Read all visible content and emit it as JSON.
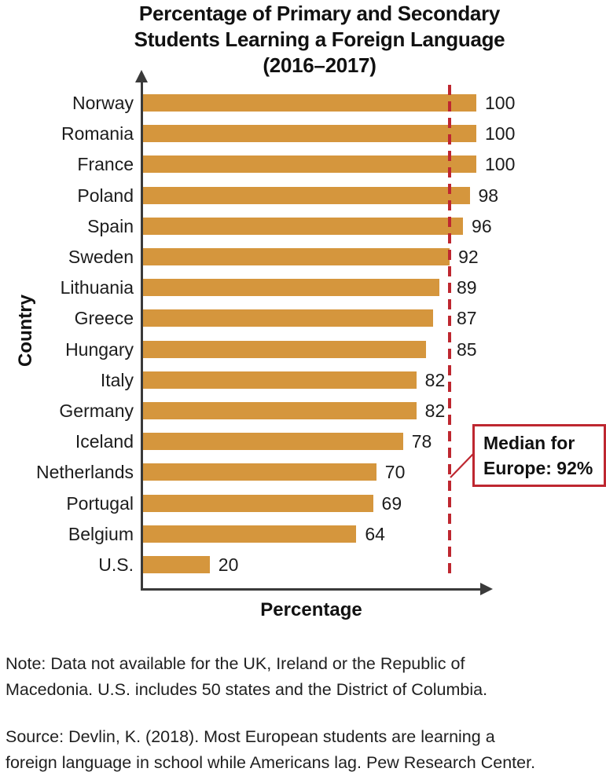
{
  "title": {
    "lines": [
      "Percentage of Primary and Secondary",
      "Students Learning a Foreign Language",
      "(2016–2017)"
    ]
  },
  "chart_data": {
    "type": "bar",
    "orientation": "horizontal",
    "title": "Percentage of Primary and Secondary Students Learning a Foreign Language (2016–2017)",
    "xlabel": "Percentage",
    "ylabel": "Country",
    "xlim": [
      0,
      105
    ],
    "grid": false,
    "legend": false,
    "categories": [
      "Norway",
      "Romania",
      "France",
      "Poland",
      "Spain",
      "Sweden",
      "Lithuania",
      "Greece",
      "Hungary",
      "Italy",
      "Germany",
      "Iceland",
      "Netherlands",
      "Portugal",
      "Belgium",
      "U.S."
    ],
    "values": [
      100,
      100,
      100,
      98,
      96,
      92,
      89,
      87,
      85,
      82,
      82,
      78,
      70,
      69,
      64,
      20
    ],
    "median_line": {
      "value": 92,
      "style": "dashed",
      "label_line1": "Median for",
      "label_line2": "Europe: 92%"
    }
  },
  "colors": {
    "bar": "#D5963D",
    "median_red": "#BE2730",
    "axis": "#3A3A3A"
  },
  "notes": {
    "note_line1": "Note: Data not available for the UK, Ireland or the Republic of",
    "note_line2": "Macedonia. U.S. includes 50 states and the District of Columbia.",
    "source_line1": "Source: Devlin, K. (2018). Most European students are learning a",
    "source_line2": "foreign language in school while Americans lag. Pew Research Center."
  }
}
